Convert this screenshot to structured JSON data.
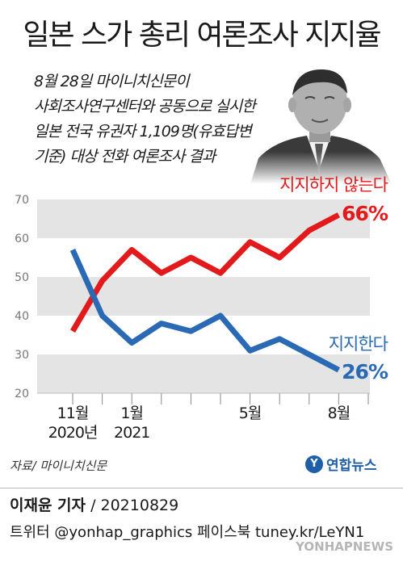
{
  "title": "일본 스가 총리 여론조사 지지율",
  "subtitle_lines": [
    "8월 28일 마이니치신문이",
    "사회조사연구센터와 공동으로 실시한",
    "일본 전국 유권자 1,109명(유효답변",
    "기준) 대상 전화 여론조사 결과"
  ],
  "colors": {
    "disapprove": "#e31a1c",
    "approve": "#2a6ab5",
    "band": "#e4e4e4",
    "agency": "#1e5fa8"
  },
  "chart_data": {
    "type": "line",
    "ylim": [
      20,
      70
    ],
    "yticks": [
      20,
      30,
      40,
      50,
      60,
      70
    ],
    "x_count": 11,
    "x_labels": [
      {
        "index": 0,
        "lines": [
          "11월",
          "2020년"
        ]
      },
      {
        "index": 2,
        "lines": [
          "1월",
          "2021"
        ]
      },
      {
        "index": 6,
        "lines": [
          "5월"
        ]
      },
      {
        "index": 9,
        "lines": [
          "8월"
        ]
      }
    ],
    "series": [
      {
        "key": "disapprove",
        "name": "지지하지 않는다",
        "values": [
          36,
          49,
          57,
          51,
          55,
          51,
          59,
          55,
          62,
          66
        ],
        "x_index": [
          0,
          1,
          2,
          3,
          4,
          5,
          6,
          7,
          8,
          9
        ],
        "end_label": "66%"
      },
      {
        "key": "approve",
        "name": "지지한다",
        "values": [
          57,
          40,
          33,
          38,
          36,
          40,
          31,
          34,
          30,
          26
        ],
        "x_index": [
          0,
          1,
          2,
          3,
          4,
          5,
          6,
          7,
          8,
          9
        ],
        "end_label": "26%"
      }
    ]
  },
  "source": "자료/ 마이니치신문",
  "agency": {
    "logo_glyph": "Y",
    "name": "연합뉴스"
  },
  "byline": {
    "reporter": "이재윤 기자",
    "date": "/ 20210829"
  },
  "social": "트위터 @yonhap_graphics  페이스북 tuney.kr/LeYN1",
  "watermark": "YONHAPNEWS"
}
